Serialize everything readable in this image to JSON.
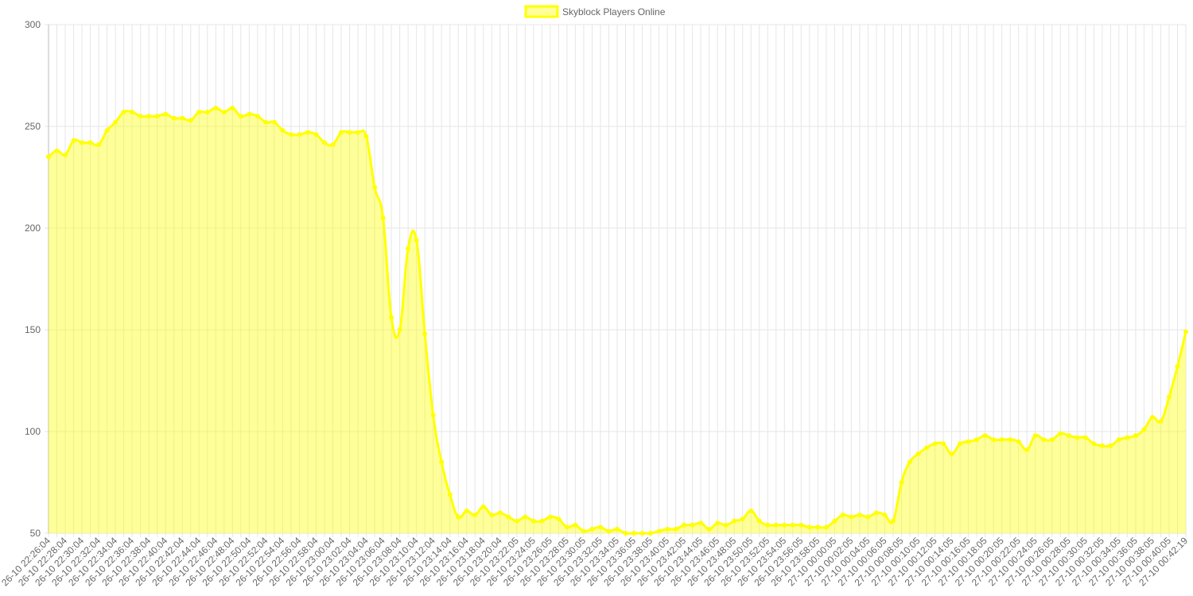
{
  "chart_data": {
    "type": "line",
    "categories": [
      "26-10 22:26:04",
      null,
      "26-10 22:28:04",
      null,
      "26-10 22:30:04",
      null,
      "26-10 22:32:04",
      null,
      "26-10 22:34:04",
      null,
      "26-10 22:36:04",
      null,
      "26-10 22:38:04",
      null,
      "26-10 22:40:04",
      null,
      "26-10 22:42:04",
      null,
      "26-10 22:44:04",
      null,
      "26-10 22:46:04",
      null,
      "26-10 22:48:04",
      null,
      "26-10 22:50:04",
      null,
      "26-10 22:52:04",
      null,
      "26-10 22:54:04",
      null,
      "26-10 22:56:04",
      null,
      "26-10 22:58:04",
      null,
      "26-10 23:00:04",
      null,
      "26-10 23:02:04",
      null,
      "26-10 23:04:04",
      null,
      "26-10 23:06:04",
      null,
      "26-10 23:08:04",
      null,
      "26-10 23:10:04",
      null,
      "26-10 23:12:04",
      null,
      "26-10 23:14:04",
      null,
      "26-10 23:16:04",
      null,
      "26-10 23:18:04",
      null,
      "26-10 23:20:04",
      null,
      "26-10 23:22:05",
      null,
      "26-10 23:24:05",
      null,
      "26-10 23:26:05",
      null,
      "26-10 23:28:05",
      null,
      "26-10 23:30:05",
      null,
      "26-10 23:32:05",
      null,
      "26-10 23:34:05",
      null,
      "26-10 23:36:05",
      null,
      "26-10 23:38:05",
      null,
      "26-10 23:40:05",
      null,
      "26-10 23:42:05",
      null,
      "26-10 23:44:05",
      null,
      "26-10 23:46:05",
      null,
      "26-10 23:48:05",
      null,
      "26-10 23:50:05",
      null,
      "26-10 23:52:05",
      null,
      "26-10 23:54:05",
      null,
      "26-10 23:56:05",
      null,
      "26-10 23:58:05",
      null,
      "27-10 00:00:05",
      null,
      "27-10 00:02:05",
      null,
      "27-10 00:04:05",
      null,
      "27-10 00:06:05",
      null,
      "27-10 00:08:05",
      null,
      "27-10 00:10:05",
      null,
      "27-10 00:12:05",
      null,
      "27-10 00:14:05",
      null,
      "27-10 00:16:05",
      null,
      "27-10 00:18:05",
      null,
      "27-10 00:20:05",
      null,
      "27-10 00:22:05",
      null,
      "27-10 00:24:05",
      null,
      "27-10 00:26:05",
      null,
      "27-10 00:28:05",
      null,
      "27-10 00:30:05",
      null,
      "27-10 00:32:05",
      null,
      "27-10 00:34:05",
      null,
      "27-10 00:36:05",
      null,
      "27-10 00:38:05",
      null,
      "27-10 00:40:05",
      null,
      "27-10 00:42:19"
    ],
    "series": [
      {
        "name": "Skyblock Players Online",
        "color": "#ffff00",
        "values": [
          235,
          238,
          236,
          243,
          242,
          242,
          241,
          248,
          252,
          257,
          257,
          255,
          255,
          255,
          256,
          254,
          254,
          253,
          257,
          257,
          259,
          257,
          259,
          255,
          256,
          255,
          252,
          252,
          248,
          246,
          246,
          247,
          246,
          242,
          241,
          247,
          247,
          247,
          245,
          220,
          205,
          156,
          150,
          190,
          194,
          148,
          108,
          85,
          69,
          58,
          61,
          59,
          63,
          59,
          60,
          58,
          56,
          58,
          56,
          56,
          58,
          57,
          53,
          54,
          51,
          52,
          53,
          51,
          52,
          50,
          50,
          50,
          50,
          51,
          52,
          52,
          54,
          54,
          55,
          52,
          55,
          54,
          56,
          57,
          61,
          56,
          54,
          54,
          54,
          54,
          54,
          53,
          53,
          53,
          56,
          59,
          58,
          59,
          58,
          60,
          59,
          56,
          75,
          85,
          89,
          92,
          94,
          94,
          89,
          94,
          95,
          96,
          98,
          96,
          96,
          96,
          95,
          91,
          98,
          96,
          96,
          99,
          98,
          97,
          97,
          94,
          93,
          93,
          96,
          97,
          98,
          101,
          107,
          105,
          117,
          132,
          149
        ]
      }
    ],
    "ylim": [
      50,
      300
    ],
    "yticks": [
      50,
      100,
      150,
      200,
      250,
      300
    ],
    "grid": true,
    "legend": "top"
  }
}
